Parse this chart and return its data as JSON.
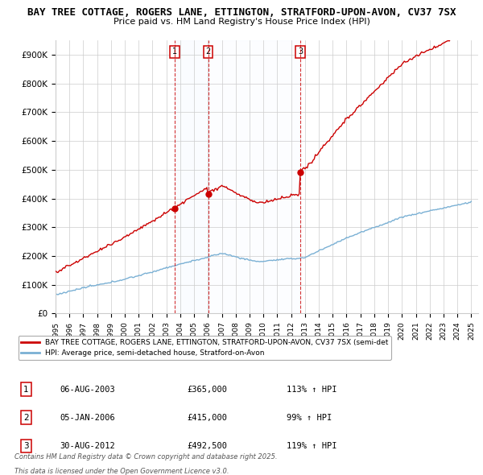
{
  "title": "BAY TREE COTTAGE, ROGERS LANE, ETTINGTON, STRATFORD-UPON-AVON, CV37 7SX",
  "subtitle": "Price paid vs. HM Land Registry's House Price Index (HPI)",
  "legend_property": "BAY TREE COTTAGE, ROGERS LANE, ETTINGTON, STRATFORD-UPON-AVON, CV37 7SX (semi-det",
  "legend_hpi": "HPI: Average price, semi-detached house, Stratford-on-Avon",
  "transactions": [
    {
      "label": "1",
      "date": "06-AUG-2003",
      "year": 2003.596,
      "price": 365000,
      "pct": "113%",
      "dir": "↑"
    },
    {
      "label": "2",
      "date": "05-JAN-2006",
      "year": 2006.014,
      "price": 415000,
      "pct": "99%",
      "dir": "↑"
    },
    {
      "label": "3",
      "date": "30-AUG-2012",
      "year": 2012.662,
      "price": 492500,
      "pct": "119%",
      "dir": "↑"
    }
  ],
  "footer_line1": "Contains HM Land Registry data © Crown copyright and database right 2025.",
  "footer_line2": "This data is licensed under the Open Government Licence v3.0.",
  "ylim": [
    0,
    950000
  ],
  "yticks": [
    0,
    100000,
    200000,
    300000,
    400000,
    500000,
    600000,
    700000,
    800000,
    900000
  ],
  "ytick_labels": [
    "£0",
    "£100K",
    "£200K",
    "£300K",
    "£400K",
    "£500K",
    "£600K",
    "£700K",
    "£800K",
    "£900K"
  ],
  "xlim_start": 1995,
  "xlim_end": 2025.5,
  "property_color": "#cc0000",
  "hpi_color": "#7ab0d4",
  "background_color": "#ffffff",
  "grid_color": "#cccccc",
  "transaction_box_color": "#cc0000",
  "vline_color": "#cc0000",
  "shade_color": "#ddeeff"
}
